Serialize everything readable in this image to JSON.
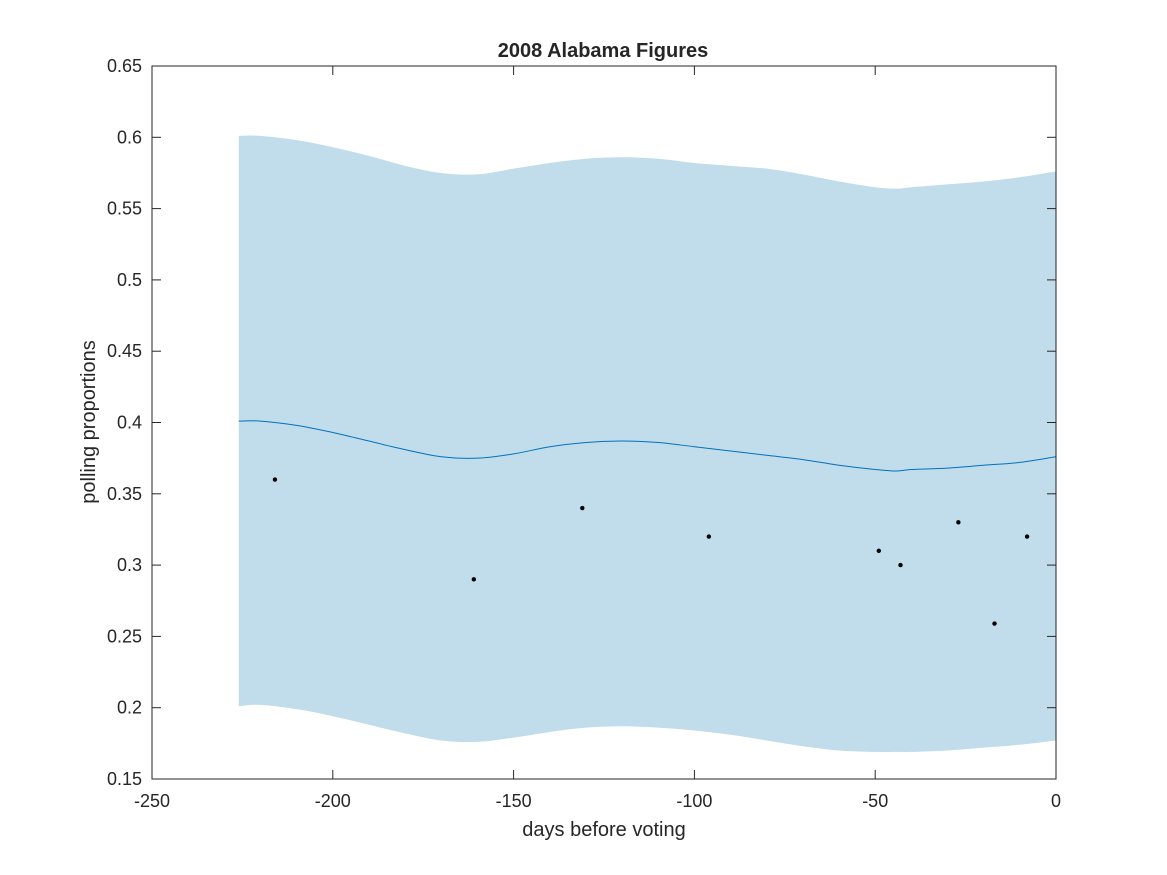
{
  "chart_data": {
    "type": "line",
    "title": "2008 Alabama Figures",
    "xlabel": "days before voting",
    "ylabel": "polling proportions",
    "xlim": [
      -250,
      0
    ],
    "ylim": [
      0.15,
      0.65
    ],
    "xticks": [
      -250,
      -200,
      -150,
      -100,
      -50,
      0
    ],
    "yticks": [
      0.15,
      0.2,
      0.25,
      0.3,
      0.35,
      0.4,
      0.45,
      0.5,
      0.55,
      0.6,
      0.65
    ],
    "xtick_labels": [
      "-250",
      "-200",
      "-150",
      "-100",
      "-50",
      "0"
    ],
    "ytick_labels": [
      "0.15",
      "0.2",
      "0.25",
      "0.3",
      "0.35",
      "0.4",
      "0.45",
      "0.5",
      "0.55",
      "0.6",
      "0.65"
    ],
    "grid": false,
    "colors": {
      "band": "#c1dceb",
      "line": "#0072bd",
      "points": "#000000",
      "axes": "#262626"
    },
    "series": [
      {
        "kind": "band",
        "x": [
          -226,
          -220,
          -210,
          -200,
          -190,
          -180,
          -170,
          -160,
          -150,
          -140,
          -130,
          -120,
          -110,
          -100,
          -90,
          -80,
          -70,
          -60,
          -50,
          -44,
          -40,
          -30,
          -20,
          -10,
          0
        ],
        "upper": [
          0.601,
          0.601,
          0.598,
          0.593,
          0.587,
          0.58,
          0.575,
          0.574,
          0.578,
          0.582,
          0.585,
          0.586,
          0.585,
          0.582,
          0.58,
          0.578,
          0.574,
          0.569,
          0.565,
          0.564,
          0.565,
          0.567,
          0.569,
          0.572,
          0.576
        ],
        "lower": [
          0.201,
          0.202,
          0.199,
          0.194,
          0.188,
          0.182,
          0.177,
          0.176,
          0.179,
          0.183,
          0.186,
          0.187,
          0.186,
          0.184,
          0.181,
          0.177,
          0.173,
          0.17,
          0.169,
          0.169,
          0.169,
          0.17,
          0.172,
          0.174,
          0.177
        ]
      },
      {
        "kind": "line",
        "x": [
          -226,
          -220,
          -210,
          -200,
          -190,
          -180,
          -170,
          -160,
          -150,
          -140,
          -130,
          -120,
          -110,
          -100,
          -90,
          -80,
          -70,
          -60,
          -50,
          -44,
          -40,
          -30,
          -20,
          -10,
          0
        ],
        "y": [
          0.401,
          0.401,
          0.398,
          0.393,
          0.387,
          0.381,
          0.376,
          0.375,
          0.378,
          0.383,
          0.386,
          0.387,
          0.386,
          0.383,
          0.38,
          0.377,
          0.374,
          0.37,
          0.367,
          0.366,
          0.367,
          0.368,
          0.37,
          0.372,
          0.376
        ]
      },
      {
        "kind": "scatter",
        "x": [
          -216,
          -161,
          -131,
          -96,
          -49,
          -43,
          -27,
          -17,
          -8
        ],
        "y": [
          0.36,
          0.29,
          0.34,
          0.32,
          0.31,
          0.3,
          0.33,
          0.259,
          0.32
        ]
      }
    ]
  }
}
